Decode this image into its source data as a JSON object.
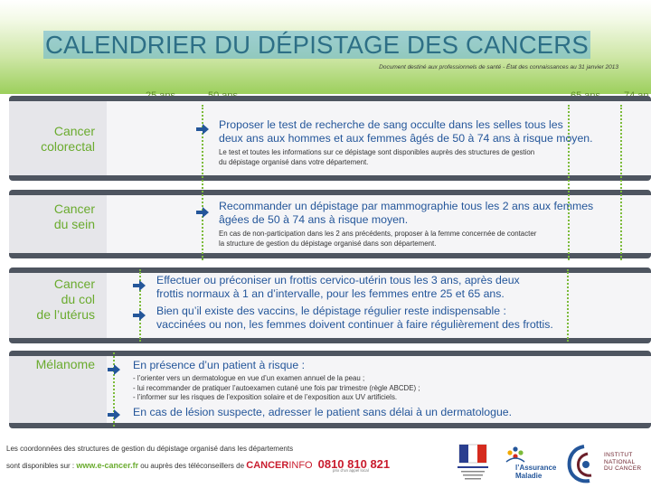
{
  "header": {
    "title": "CALENDRIER DU DÉPISTAGE DES CANCERS",
    "subtitle": "Document destiné aux professionnels de santé - État des connaissances au 31 janvier 2013"
  },
  "ages": {
    "a25": "25 ans",
    "a50": "50 ans",
    "a65": "65 ans",
    "a74": "74 an"
  },
  "sections": {
    "colorectal": {
      "name_l1": "Cancer",
      "name_l2": "colorectal",
      "main_l1": "Proposer le test de recherche de sang occulte dans les selles tous les",
      "main_l2": "deux ans aux hommes et aux femmes âgés de 50 à 74 ans à risque moyen.",
      "note_l1": "Le test et toutes les informations sur ce dépistage sont disponibles auprès des structures de gestion",
      "note_l2": "du dépistage organisé dans votre département."
    },
    "sein": {
      "name_l1": "Cancer",
      "name_l2": "du sein",
      "main_l1": "Recommander un dépistage par mammographie tous les 2 ans aux femmes",
      "main_l2": "âgées de 50 à 74 ans à risque moyen.",
      "note_l1": "En cas de non-participation dans les 2 ans précédents, proposer à la femme concernée de contacter",
      "note_l2": "la structure de gestion du dépistage organisé dans son département."
    },
    "uterus": {
      "name_l1": "Cancer",
      "name_l2": "du col",
      "name_l3": "de l’utérus",
      "main1_l1": "Effectuer ou préconiser un frottis cervico-utérin tous les 3 ans, après deux",
      "main1_l2": "frottis normaux à 1 an d’intervalle, pour les femmes entre 25 et 65 ans.",
      "main2_l1": "Bien qu’il existe des vaccins, le dépistage régulier reste indispensable :",
      "main2_l2": "vaccinées ou non, les femmes doivent continuer à faire régulièrement des frottis."
    },
    "melanome": {
      "name_l1": "Mélanome",
      "main1": "En présence d’un patient à risque :",
      "bullet1": "- l’orienter vers un dermatologue en vue d’un examen annuel de la peau ;",
      "bullet2": "- lui recommander de pratiquer l’autoexamen cutané une fois par trimestre (règle ABCDE) ;",
      "bullet3": "- l’informer sur les risques de l’exposition solaire et de l’exposition aux UV artificiels.",
      "main2": "En cas de lésion suspecte, adresser le patient sans délai à un dermatologue."
    }
  },
  "footer": {
    "line1": "Les coordonnées des structures de gestion du dépistage organisé dans les départements",
    "line2_prefix": "sont disponibles sur : ",
    "link": "www.e-cancer.fr",
    "line2_mid": " ou auprès des téléconseillers de ",
    "cancerinfo_bold": "CANCER",
    "cancerinfo_light": "INFO",
    "phone": "0810 810 821",
    "phone_note": "prix d’un appel local",
    "am_l1": "l’Assurance",
    "am_l2": "Maladie",
    "inca_l1": "INSTITUT",
    "inca_l2": "NATIONAL",
    "inca_l3": "DU CANCER"
  },
  "colors": {
    "title_blue": "#2d6f86",
    "accent_green": "#6aab2e",
    "text_blue": "#24569a",
    "dark_bar": "#4e5560"
  },
  "icons": [
    "arrow-right-icon",
    "age-marker-dot-icon",
    "republique-francaise-logo",
    "assurance-maladie-logo",
    "inca-logo"
  ]
}
